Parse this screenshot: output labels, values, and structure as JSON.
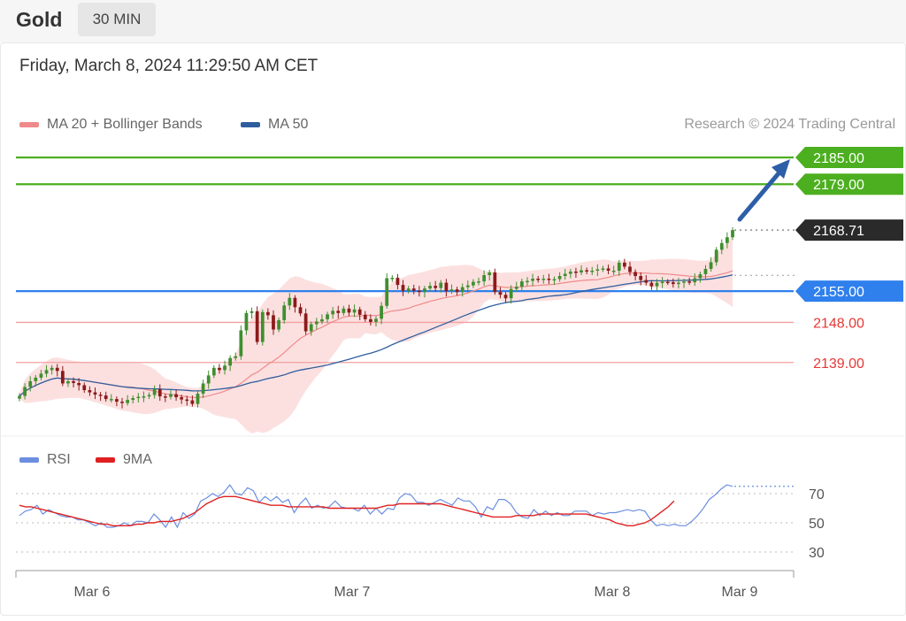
{
  "header": {
    "instrument": "Gold",
    "timeframe": "30 MIN"
  },
  "timestamp": "Friday, March 8, 2024 11:29:50 AM CET",
  "legend": {
    "ma20": {
      "label": "MA 20 + Bollinger Bands",
      "color": "#f08a8a"
    },
    "ma50": {
      "label": "MA 50",
      "color": "#2f5e9e"
    },
    "rsi": {
      "label": "RSI",
      "color": "#6b8fe0"
    },
    "rsi_ma": {
      "label": "9MA",
      "color": "#e02020"
    }
  },
  "credit": "Research © 2024 Trading Central",
  "colors": {
    "target": "#4caf1f",
    "pivot": "#2f80ed",
    "support": "#e53935",
    "current": "#2a2a2a",
    "arrow": "#2d5ea8",
    "up_candle": "#3f8f2f",
    "down_candle": "#8b1a1a"
  },
  "chart_data": {
    "type": "candlestick",
    "ylim": [
      2130,
      2190
    ],
    "levels": [
      {
        "label": "2185.00",
        "value": 2185.0,
        "kind": "target"
      },
      {
        "label": "2179.00",
        "value": 2179.0,
        "kind": "target"
      },
      {
        "label": "2168.71",
        "value": 2168.71,
        "kind": "current"
      },
      {
        "label": "2155.00",
        "value": 2155.0,
        "kind": "pivot"
      },
      {
        "label": "2148.00",
        "value": 2148.0,
        "kind": "support"
      },
      {
        "label": "2139.00",
        "value": 2139.0,
        "kind": "support"
      }
    ],
    "x_ticks": [
      "Mar 6",
      "Mar 7",
      "Mar 8",
      "Mar 9"
    ],
    "close": [
      2131.5,
      2133.5,
      2134.8,
      2135.6,
      2136.5,
      2137.3,
      2137.8,
      2137.1,
      2134.3,
      2134.8,
      2134.4,
      2133.9,
      2132.8,
      2132.3,
      2131.8,
      2131.6,
      2130.8,
      2130.8,
      2130.2,
      2129.9,
      2130.6,
      2131.0,
      2131.3,
      2131.4,
      2131.7,
      2133.0,
      2131.4,
      2131.3,
      2131.9,
      2131.2,
      2130.7,
      2130.5,
      2129.7,
      2132.0,
      2134.3,
      2136.1,
      2137.8,
      2137.3,
      2138.3,
      2140.0,
      2140.4,
      2146.2,
      2150.1,
      2150.5,
      2143.6,
      2150.3,
      2149.6,
      2146.4,
      2148.5,
      2151.8,
      2153.5,
      2151.4,
      2150.0,
      2146.0,
      2147.6,
      2148.2,
      2148.7,
      2149.8,
      2150.6,
      2150.1,
      2151.1,
      2150.2,
      2150.9,
      2149.7,
      2148.7,
      2148.1,
      2148.8,
      2151.7,
      2157.9,
      2158.0,
      2156.4,
      2155.1,
      2155.6,
      2155.1,
      2154.8,
      2155.6,
      2156.2,
      2155.7,
      2156.9,
      2155.0,
      2155.4,
      2154.8,
      2155.9,
      2156.3,
      2157.1,
      2157.2,
      2158.6,
      2159.2,
      2154.8,
      2154.2,
      2153.4,
      2155.5,
      2156.0,
      2157.2,
      2157.3,
      2157.8,
      2157.5,
      2157.8,
      2157.6,
      2157.7,
      2158.4,
      2158.9,
      2159.4,
      2159.2,
      2159.7,
      2159.6,
      2159.6,
      2159.9,
      2160.1,
      2159.6,
      2159.6,
      2161.4,
      2160.5,
      2159.3,
      2158.4,
      2157.5,
      2156.9,
      2156.1,
      2156.9,
      2157.1,
      2157.0,
      2156.6,
      2156.9,
      2157.2,
      2157.0,
      2157.9,
      2158.8,
      2160.0,
      2161.5,
      2164.3,
      2165.8,
      2167.1,
      2168.71
    ],
    "rsi": {
      "yticks": [
        70,
        50,
        30
      ],
      "ylim": [
        22,
        82
      ],
      "rsi": [
        55,
        58,
        59,
        62,
        56,
        59,
        57,
        55,
        54,
        54,
        52,
        52,
        50,
        48,
        50,
        47,
        47,
        48,
        50,
        48,
        51,
        51,
        50,
        56,
        52,
        47,
        54,
        47,
        57,
        53,
        56,
        65,
        67,
        70,
        68,
        71,
        76,
        70,
        69,
        74,
        72,
        64,
        68,
        65,
        68,
        64,
        66,
        57,
        63,
        67,
        60,
        62,
        60,
        61,
        65,
        61,
        60,
        60,
        58,
        62,
        56,
        60,
        56,
        60,
        59,
        67,
        70,
        69,
        64,
        64,
        62,
        64,
        66,
        64,
        62,
        67,
        65,
        65,
        61,
        54,
        61,
        59,
        66,
        66,
        63,
        57,
        54,
        53,
        59,
        55,
        58,
        55,
        57,
        55,
        55,
        58,
        58,
        58,
        55,
        57,
        56,
        57,
        57,
        58,
        59,
        58,
        59,
        58,
        52,
        48,
        49,
        48,
        49,
        48,
        48,
        51,
        55,
        60,
        66,
        69,
        73,
        76,
        75
      ],
      "rsi_ma": [
        62,
        61,
        61,
        60,
        59,
        58,
        57,
        56,
        55,
        54,
        53,
        52,
        51,
        50,
        49,
        49,
        48,
        48,
        48,
        48,
        49,
        49,
        50,
        50,
        51,
        51,
        51,
        52,
        53,
        55,
        57,
        60,
        63,
        65,
        67,
        68,
        68,
        68,
        67,
        66,
        65,
        64,
        63,
        62,
        62,
        62,
        61,
        61,
        61,
        61,
        61,
        61,
        61,
        60,
        60,
        60,
        60,
        60,
        60,
        60,
        60,
        60,
        61,
        62,
        62,
        63,
        63,
        63,
        63,
        63,
        63,
        63,
        63,
        62,
        61,
        60,
        59,
        58,
        57,
        56,
        55,
        54,
        54,
        54,
        54,
        55,
        55,
        55,
        55,
        56,
        56,
        56,
        56,
        56,
        56,
        56,
        56,
        56,
        55,
        54,
        53,
        52,
        50,
        49,
        48,
        48,
        49,
        50,
        52,
        55,
        58,
        61,
        65
      ]
    }
  }
}
